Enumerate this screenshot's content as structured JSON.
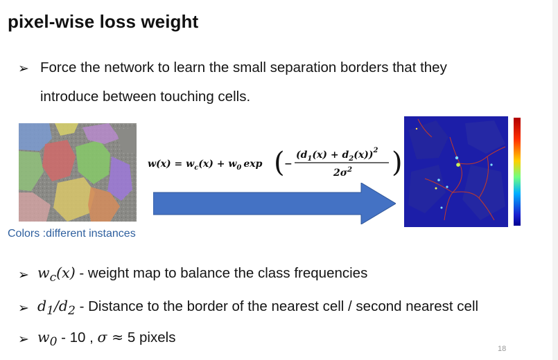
{
  "slide": {
    "title": "pixel-wise loss weight",
    "bullets": [
      {
        "line1": "Force the network to learn the small separation borders that they",
        "line2": "introduce between touching cells."
      }
    ],
    "caption": "Colors :different instances",
    "formula": {
      "lhs": "w(x) = w",
      "lhs_sub": "c",
      "mid": "(x) + w",
      "mid_sub": "0",
      "exp": "exp",
      "num": "(d",
      "num_sub1": "1",
      "num_mid": "(x) + d",
      "num_sub2": "2",
      "num_end": "(x))",
      "num_pow": "2",
      "den": "2σ",
      "den_pow": "2"
    },
    "defs": [
      {
        "sym": "w",
        "sub": "c",
        "sym_tail": "(x)",
        "text": " - weight map to balance the class frequencies"
      },
      {
        "sym": "d",
        "sub": "1",
        "sym_mid": "/d",
        "sub2": "2",
        "text": " - Distance to the border of the nearest cell / second nearest cell"
      },
      {
        "sym": "w",
        "sub": "0",
        "text": " - 10 , ",
        "sigma": "σ ≈",
        "text2": " 5 pixels"
      }
    ],
    "page_number": "18"
  },
  "colors": {
    "caption": "#2e5f9e",
    "arrow": "#4472c4",
    "map_bg": "#1c1ea8"
  }
}
